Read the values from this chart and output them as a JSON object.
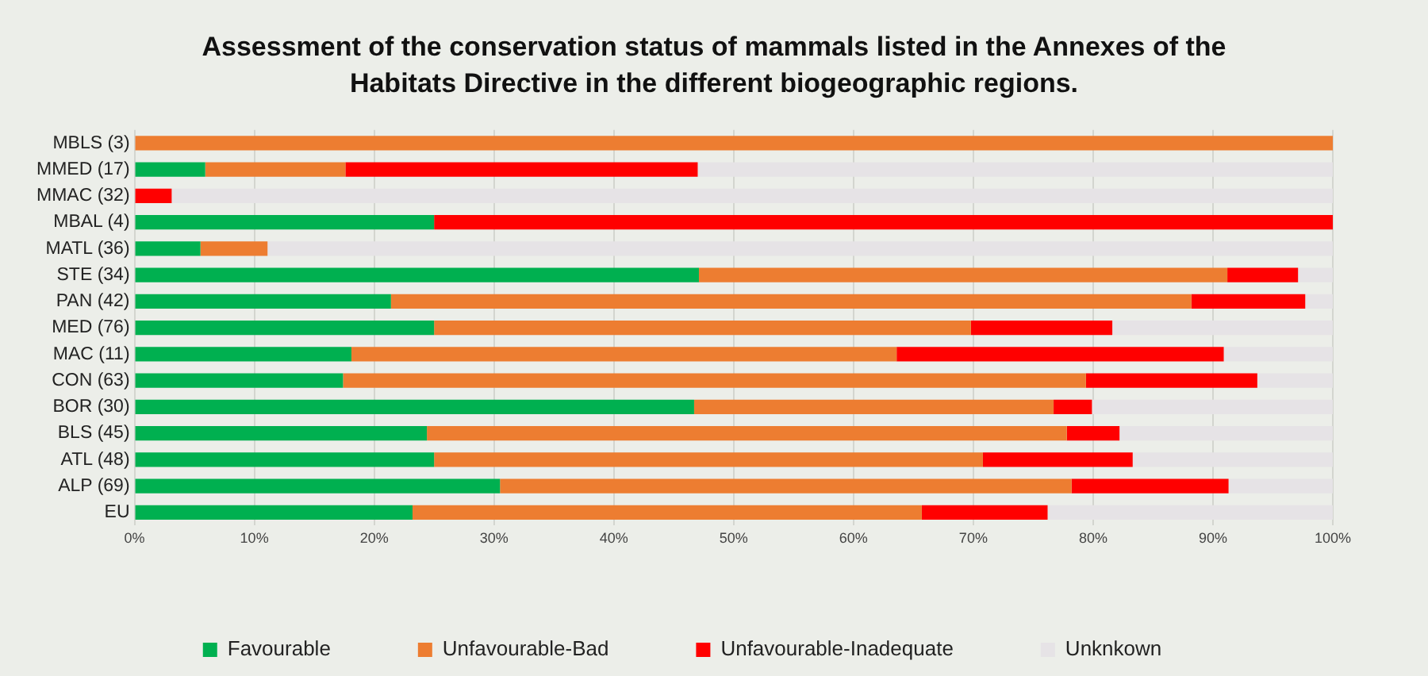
{
  "chart_data": {
    "type": "bar",
    "orientation": "horizontal",
    "stacked": true,
    "title": "Assessment of the conservation status of mammals listed in the Annexes of the Habitats Directive in the different biogeographic regions.",
    "categories": [
      "MBLS (3)",
      "MMED (17)",
      "MMAC (32)",
      "MBAL (4)",
      "MATL (36)",
      "STE (34)",
      "PAN (42)",
      "MED (76)",
      "MAC (11)",
      "CON (63)",
      "BOR (30)",
      "BLS (45)",
      "ATL (48)",
      "ALP (69)",
      "EU"
    ],
    "series": [
      {
        "name": "Favourable",
        "color": "#00b050",
        "values": [
          0,
          5.9,
          0,
          25,
          5.5,
          47.1,
          21.4,
          25,
          18.1,
          17.4,
          46.7,
          24.4,
          25,
          30.5,
          23.2
        ]
      },
      {
        "name": "Unfavourable-Bad",
        "color": "#ed7d31",
        "values": [
          100,
          11.7,
          0,
          0,
          5.6,
          44.1,
          66.8,
          44.8,
          45.5,
          62,
          30,
          53.4,
          45.8,
          47.7,
          42.5
        ]
      },
      {
        "name": "Unfavourable-Inadequate",
        "color": "#ff0000",
        "values": [
          0,
          29.4,
          3.1,
          75,
          0,
          5.9,
          9.5,
          11.8,
          27.3,
          14.3,
          3.2,
          4.4,
          12.5,
          13.1,
          10.5
        ]
      },
      {
        "name": "Unknkown",
        "color": "#e6e3e6",
        "values": [
          0,
          53,
          96.9,
          0,
          88.9,
          2.9,
          2.3,
          18.4,
          9.1,
          6.3,
          20.1,
          17.8,
          16.7,
          8.7,
          23.8
        ]
      }
    ],
    "xlim": [
      0,
      100
    ],
    "xticks": [
      {
        "value": 0,
        "label": "0%"
      },
      {
        "value": 10,
        "label": "10%"
      },
      {
        "value": 20,
        "label": "20%"
      },
      {
        "value": 30,
        "label": "30%"
      },
      {
        "value": 40,
        "label": "40%"
      },
      {
        "value": 50,
        "label": "50%"
      },
      {
        "value": 60,
        "label": "60%"
      },
      {
        "value": 70,
        "label": "70%"
      },
      {
        "value": 80,
        "label": "80%"
      },
      {
        "value": 90,
        "label": "90%"
      },
      {
        "value": 100,
        "label": "100%"
      }
    ],
    "grid": "x",
    "legend": "bottom"
  }
}
